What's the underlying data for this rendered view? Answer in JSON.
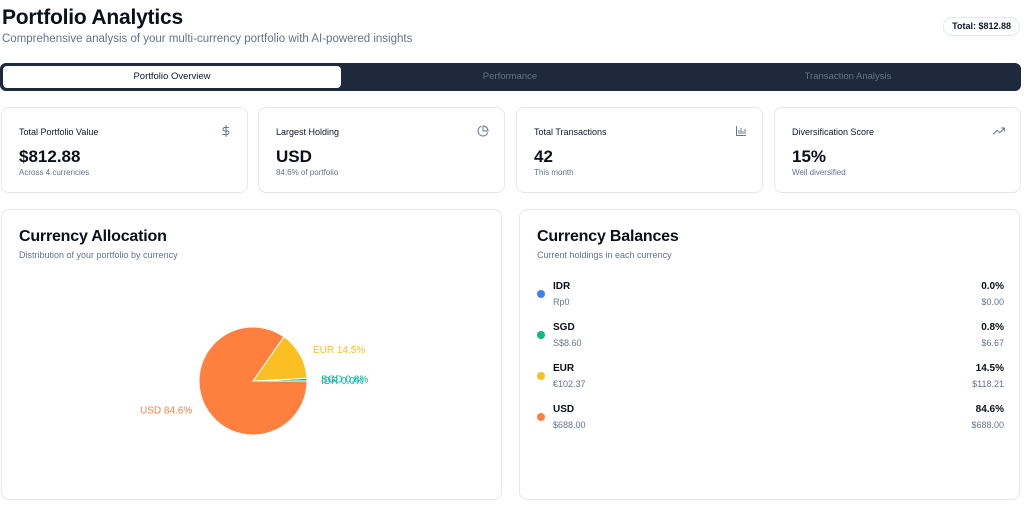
{
  "header": {
    "title": "Portfolio Analytics",
    "subtitle": "Comprehensive analysis of your multi-currency portfolio with AI-powered insights",
    "total_badge": "Total: $812.88"
  },
  "tabs": [
    {
      "label": "Portfolio Overview",
      "active": true
    },
    {
      "label": "Performance",
      "active": false
    },
    {
      "label": "Transaction Analysis",
      "active": false
    }
  ],
  "stats": [
    {
      "label": "Total Portfolio Value",
      "value": "$812.88",
      "sub": "Across 4 currencies",
      "icon": "dollar-icon"
    },
    {
      "label": "Largest Holding",
      "value": "USD",
      "sub": "84.6% of portfolio",
      "icon": "pie-chart-icon"
    },
    {
      "label": "Total Transactions",
      "value": "42",
      "sub": "This month",
      "icon": "bar-chart-icon"
    },
    {
      "label": "Diversification Score",
      "value": "15%",
      "sub": "Well diversified",
      "icon": "trending-up-icon"
    }
  ],
  "allocation": {
    "title": "Currency Allocation",
    "subtitle": "Distribution of your portfolio by currency"
  },
  "balances": {
    "title": "Currency Balances",
    "subtitle": "Current holdings in each currency",
    "items": [
      {
        "code": "IDR",
        "native": "Rp0",
        "pct": "0.0%",
        "usd": "$0.00",
        "color": "#3b82f6"
      },
      {
        "code": "SGD",
        "native": "S$8.60",
        "pct": "0.8%",
        "usd": "$6.67",
        "color": "#10b981"
      },
      {
        "code": "EUR",
        "native": "€102.37",
        "pct": "14.5%",
        "usd": "$118.21",
        "color": "#fbbf24"
      },
      {
        "code": "USD",
        "native": "$688.00",
        "pct": "84.6%",
        "usd": "$688.00",
        "color": "#ff7f3f"
      }
    ]
  },
  "chart_data": {
    "type": "pie",
    "title": "",
    "categories": [
      "IDR",
      "SGD",
      "EUR",
      "USD"
    ],
    "values": [
      0.0,
      0.8,
      14.5,
      84.6
    ],
    "labels": [
      "IDR 0.0%",
      "SGD 0.8%",
      "EUR 14.5%",
      "USD 84.6%"
    ],
    "colors": [
      "#06b6d4",
      "#10b981",
      "#fbbf24",
      "#ff7f3f"
    ]
  }
}
